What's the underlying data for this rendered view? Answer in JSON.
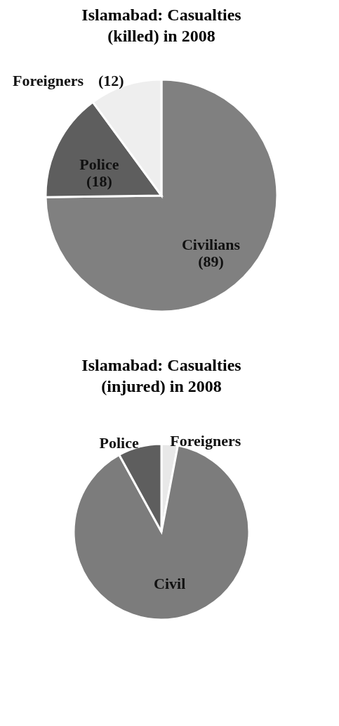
{
  "chart_data": [
    {
      "type": "pie",
      "title": "Islamabad: Casualties (killed) in 2008",
      "categories": [
        "Civilians",
        "Police",
        "Foreigners"
      ],
      "values": [
        89,
        18,
        12
      ],
      "value_labels": [
        "(89)",
        "(18)",
        "(12)"
      ],
      "colors": [
        "#808080",
        "#5e5e5e",
        "#eeeeee"
      ],
      "legend": false
    },
    {
      "type": "pie",
      "title": "Islamabad: Casualties (injured) in 2008",
      "categories": [
        "Foreigners",
        "Civil",
        "Police"
      ],
      "values": [
        3,
        89,
        8
      ],
      "colors": [
        "#e8e8e8",
        "#7c7c7c",
        "#5e5e5e"
      ],
      "legend": false
    }
  ]
}
